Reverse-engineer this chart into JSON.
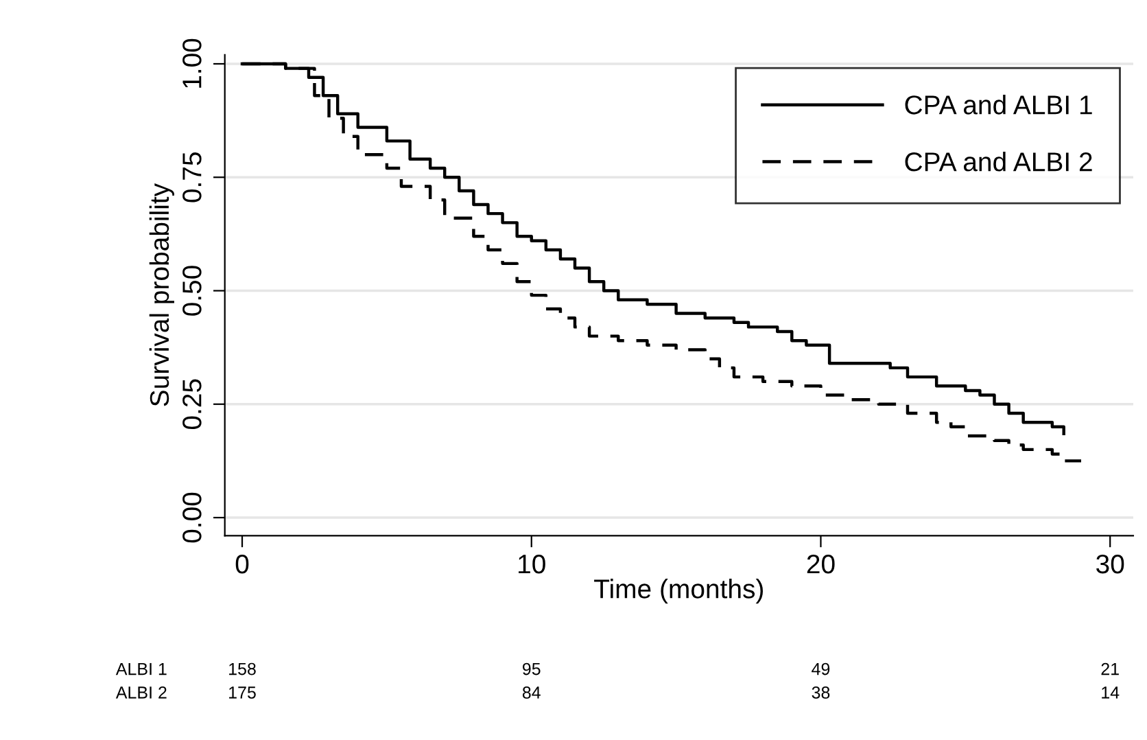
{
  "chart_data": {
    "type": "step",
    "xlabel": "Time (months)",
    "ylabel": "Survival probability",
    "xlim": [
      -0.6,
      30.8
    ],
    "ylim": [
      -0.04,
      1.02
    ],
    "xticks": [
      0,
      10,
      20,
      30
    ],
    "yticks": [
      {
        "value": 0,
        "label": "0.00"
      },
      {
        "value": 0.25,
        "label": "0.25"
      },
      {
        "value": 0.5,
        "label": "0.50"
      },
      {
        "value": 0.75,
        "label": "0.75"
      },
      {
        "value": 1,
        "label": "1.00"
      }
    ],
    "grid": "y",
    "legend": "top right",
    "series": [
      {
        "name": "CPA and ALBI 1",
        "color": "#000000",
        "line_style": "solid",
        "x": [
          0,
          1.5,
          2.3,
          2.8,
          3.3,
          4,
          5,
          5.8,
          6.5,
          7,
          7.5,
          8,
          8.5,
          9,
          9.5,
          10,
          10.5,
          11,
          11.5,
          12,
          12.5,
          13,
          14,
          15,
          16,
          17,
          17.5,
          18.5,
          19,
          19.5,
          20.3,
          22.4,
          23,
          24,
          25,
          25.5,
          26,
          26.5,
          27,
          28,
          28.4
        ],
        "values": [
          1.0,
          0.99,
          0.97,
          0.93,
          0.89,
          0.86,
          0.83,
          0.79,
          0.77,
          0.75,
          0.72,
          0.69,
          0.67,
          0.65,
          0.62,
          0.61,
          0.59,
          0.57,
          0.55,
          0.52,
          0.5,
          0.48,
          0.47,
          0.45,
          0.44,
          0.43,
          0.42,
          0.41,
          0.39,
          0.38,
          0.34,
          0.33,
          0.31,
          0.29,
          0.28,
          0.27,
          0.25,
          0.23,
          0.21,
          0.2,
          0.185
        ]
      },
      {
        "name": "CPA and ALBI 2",
        "color": "#000000",
        "line_style": "dashed",
        "x": [
          0,
          1.5,
          2.5,
          3,
          3.5,
          4,
          5,
          5.5,
          6.5,
          7,
          8,
          8.5,
          9,
          9.5,
          10,
          10.5,
          11,
          11.5,
          12,
          13,
          14,
          15,
          16,
          16.5,
          17,
          18,
          19,
          20,
          21,
          22,
          23,
          24,
          24.5,
          25,
          26,
          26.5,
          27,
          28,
          28.3,
          29
        ],
        "values": [
          1.0,
          0.99,
          0.93,
          0.88,
          0.84,
          0.8,
          0.77,
          0.73,
          0.7,
          0.66,
          0.62,
          0.59,
          0.56,
          0.52,
          0.49,
          0.46,
          0.44,
          0.42,
          0.4,
          0.39,
          0.38,
          0.37,
          0.35,
          0.33,
          0.31,
          0.3,
          0.29,
          0.27,
          0.26,
          0.25,
          0.23,
          0.21,
          0.2,
          0.18,
          0.17,
          0.16,
          0.15,
          0.14,
          0.125,
          0.125
        ]
      }
    ],
    "annotations": [
      "ALBI 1",
      "158",
      "95",
      "49",
      "21",
      "ALBI 2",
      "175",
      "84",
      "38",
      "14"
    ]
  }
}
